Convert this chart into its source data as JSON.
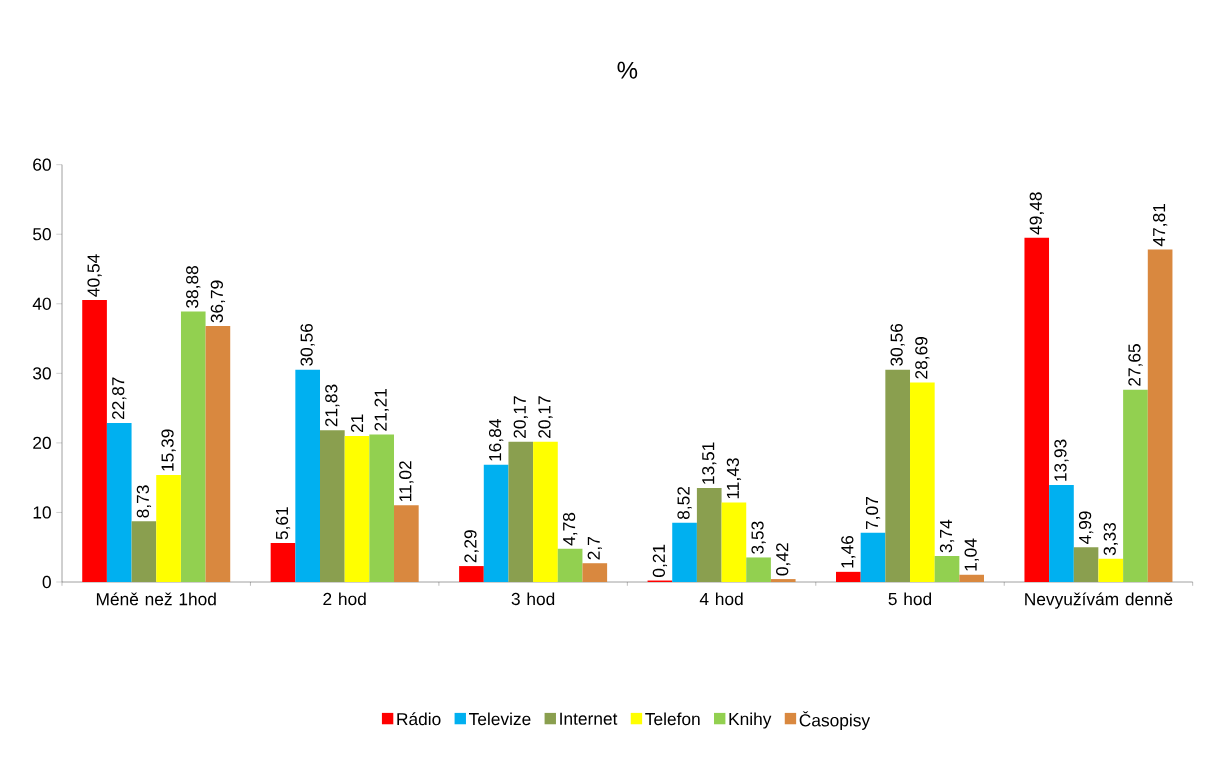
{
  "chart_data": {
    "type": "bar",
    "title": "%",
    "categories": [
      "Méně než 1hod",
      "2 hod",
      "3 hod",
      "4 hod",
      "5 hod",
      "Nevyužívám denně"
    ],
    "series": [
      {
        "name": "Rádio",
        "color": "#ff0000",
        "values": [
          40.54,
          5.61,
          2.29,
          0.21,
          1.46,
          49.48
        ],
        "value_labels": [
          "40,54",
          "5,61",
          "2,29",
          "0,21",
          "1,46",
          "49,48"
        ]
      },
      {
        "name": "Televize",
        "color": "#00b0f0",
        "values": [
          22.87,
          30.56,
          16.84,
          8.52,
          7.07,
          13.93
        ],
        "value_labels": [
          "22,87",
          "30,56",
          "16,84",
          "8,52",
          "7,07",
          "13,93"
        ]
      },
      {
        "name": "Internet",
        "color": "#8a9f4f",
        "values": [
          8.73,
          21.83,
          20.17,
          13.51,
          30.56,
          4.99
        ],
        "value_labels": [
          "8,73",
          "21,83",
          "20,17",
          "13,51",
          "30,56",
          "4,99"
        ]
      },
      {
        "name": "Telefon",
        "color": "#ffff00",
        "values": [
          15.39,
          21,
          20.17,
          11.43,
          28.69,
          3.33
        ],
        "value_labels": [
          "15,39",
          "21",
          "20,17",
          "11,43",
          "28,69",
          "3,33"
        ]
      },
      {
        "name": "Knihy",
        "color": "#92d050",
        "values": [
          38.88,
          21.21,
          4.78,
          3.53,
          3.74,
          27.65
        ],
        "value_labels": [
          "38,88",
          "21,21",
          "4,78",
          "3,53",
          "3,74",
          "27,65"
        ]
      },
      {
        "name": "Časopisy",
        "color": "#d9883f",
        "values": [
          36.79,
          11.02,
          2.7,
          0.42,
          1.04,
          47.81
        ],
        "value_labels": [
          "36,79",
          "11,02",
          "2,7",
          "0,42",
          "1,04",
          "47,81"
        ]
      }
    ],
    "ylim": [
      0,
      60
    ],
    "yticks": [
      0,
      10,
      20,
      30,
      40,
      50,
      60
    ],
    "legend": "bottom"
  }
}
